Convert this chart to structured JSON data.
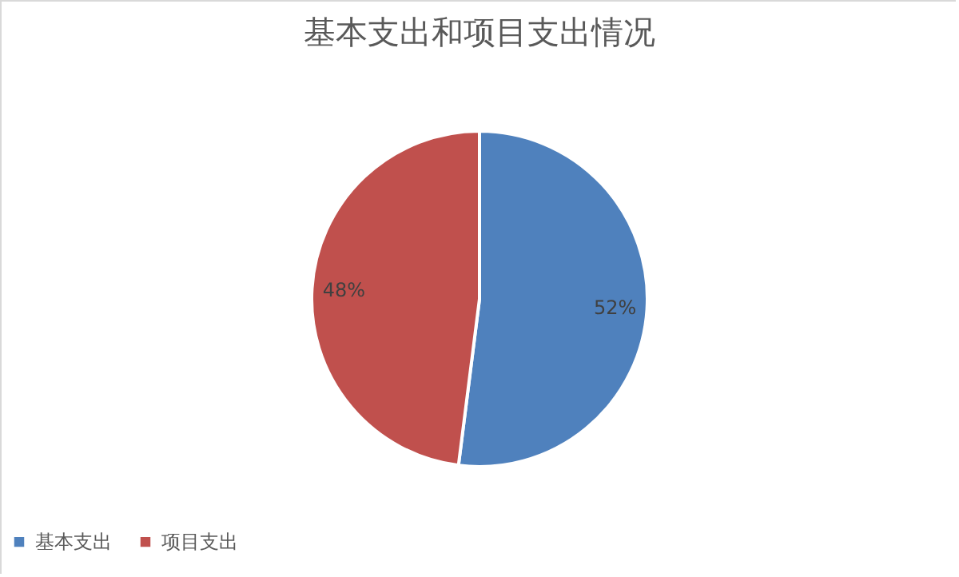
{
  "chart_data": {
    "type": "pie",
    "title": "基本支出和项目支出情况",
    "categories": [
      "基本支出",
      "项目支出"
    ],
    "values": [
      52,
      48
    ],
    "colors": [
      "#4f81bd",
      "#c0504d"
    ],
    "value_labels": [
      "52%",
      "48%"
    ],
    "legend": "bottom"
  }
}
